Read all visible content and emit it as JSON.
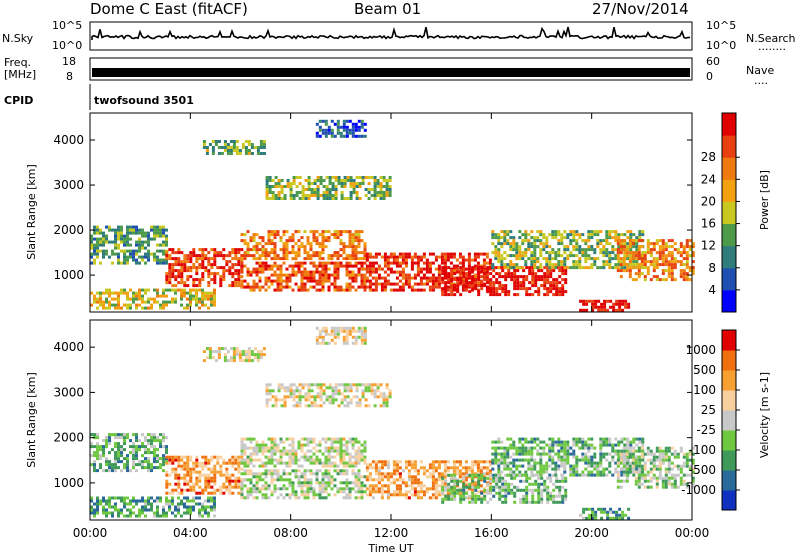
{
  "header": {
    "station": "Dome C East (fitACF)",
    "beam": "Beam 01",
    "date": "27/Nov/2014"
  },
  "noise_panel": {
    "left_label": "N.Sky",
    "right_label": "N.Search",
    "top_tick": "10^5",
    "bottom_tick": "10^0",
    "right_dots": "........"
  },
  "freq_panel": {
    "left_label_1": "Freq.",
    "left_label_2": "[MHz]",
    "left_top_tick": "18",
    "left_bottom_tick": "8",
    "right_label": "Nave",
    "right_top_tick": "60",
    "right_bottom_tick": "0",
    "right_dots": "...."
  },
  "cpid": {
    "label": "CPID",
    "value": "twofsound 3501"
  },
  "x_axis": {
    "title": "Time UT",
    "ticks": [
      "00:00",
      "04:00",
      "08:00",
      "12:00",
      "16:00",
      "20:00",
      "00:00"
    ]
  },
  "colors": {
    "axes": "#000000",
    "background": "#ffffff"
  },
  "chart_data": [
    {
      "type": "heatmap",
      "panel": "power",
      "ylabel": "Slant Range [km]",
      "yticks": [
        "1000",
        "2000",
        "3000",
        "4000"
      ],
      "ylim_km": [
        180,
        4600
      ],
      "xlim_hours": [
        0,
        24
      ],
      "colorbar": {
        "label": "Power [dB]",
        "ticks": [
          "4",
          "8",
          "12",
          "16",
          "20",
          "24",
          "28"
        ],
        "colors": [
          "#0000ff",
          "#1f4fb0",
          "#2e7d7a",
          "#4c9a4a",
          "#c9c820",
          "#f2a010",
          "#ef7a10",
          "#e84010",
          "#e00000"
        ]
      },
      "regions": [
        {
          "t0": 0,
          "t1": 5,
          "r0": 280,
          "r1": 700,
          "level": 0.55
        },
        {
          "t0": 0,
          "t1": 3,
          "r0": 1300,
          "r1": 2100,
          "level": 0.35
        },
        {
          "t0": 3,
          "t1": 6,
          "r0": 800,
          "r1": 1600,
          "level": 0.85
        },
        {
          "t0": 6,
          "t1": 11,
          "r0": 700,
          "r1": 1300,
          "level": 0.8
        },
        {
          "t0": 6,
          "t1": 11,
          "r0": 1400,
          "r1": 2000,
          "level": 0.7
        },
        {
          "t0": 11,
          "t1": 16,
          "r0": 700,
          "r1": 1500,
          "level": 0.9
        },
        {
          "t0": 14,
          "t1": 19,
          "r0": 600,
          "r1": 1200,
          "level": 0.95
        },
        {
          "t0": 16,
          "t1": 22,
          "r0": 1200,
          "r1": 2000,
          "level": 0.45
        },
        {
          "t0": 19.5,
          "t1": 21.5,
          "r0": 200,
          "r1": 450,
          "level": 0.95
        },
        {
          "t0": 21,
          "t1": 24,
          "r0": 900,
          "r1": 1800,
          "level": 0.7
        },
        {
          "t0": 7,
          "t1": 12,
          "r0": 2700,
          "r1": 3200,
          "level": 0.45
        },
        {
          "t0": 4.5,
          "t1": 7,
          "r0": 3700,
          "r1": 4000,
          "level": 0.4
        },
        {
          "t0": 9,
          "t1": 11,
          "r0": 4100,
          "r1": 4450,
          "level": 0.2
        }
      ]
    },
    {
      "type": "heatmap",
      "panel": "velocity",
      "ylabel": "Slant Range [km]",
      "yticks": [
        "1000",
        "2000",
        "3000",
        "4000"
      ],
      "ylim_km": [
        180,
        4600
      ],
      "xlim_hours": [
        0,
        24
      ],
      "colorbar": {
        "label": "Velocity [m s-1]",
        "ticks": [
          "1000",
          "500",
          "100",
          "25",
          "-25",
          "-100",
          "-500",
          "-1000"
        ],
        "colors": [
          "#1030c0",
          "#2a6a9a",
          "#3f9a5a",
          "#6fc840",
          "#c8c8c8",
          "#f8d0a0",
          "#f5a030",
          "#f07010",
          "#e00000"
        ]
      },
      "regions": [
        {
          "t0": 0,
          "t1": 5,
          "r0": 280,
          "r1": 700,
          "level": 0.3
        },
        {
          "t0": 0,
          "t1": 3,
          "r0": 1300,
          "r1": 2100,
          "level": 0.35
        },
        {
          "t0": 3,
          "t1": 6,
          "r0": 800,
          "r1": 1600,
          "level": 0.75
        },
        {
          "t0": 6,
          "t1": 11,
          "r0": 700,
          "r1": 1300,
          "level": 0.45
        },
        {
          "t0": 6,
          "t1": 11,
          "r0": 1400,
          "r1": 2000,
          "level": 0.5
        },
        {
          "t0": 11,
          "t1": 16,
          "r0": 700,
          "r1": 1500,
          "level": 0.72
        },
        {
          "t0": 14,
          "t1": 19,
          "r0": 600,
          "r1": 1200,
          "level": 0.38
        },
        {
          "t0": 16,
          "t1": 22,
          "r0": 1200,
          "r1": 2000,
          "level": 0.35
        },
        {
          "t0": 19.5,
          "t1": 21.5,
          "r0": 200,
          "r1": 450,
          "level": 0.3
        },
        {
          "t0": 21,
          "t1": 24,
          "r0": 900,
          "r1": 1800,
          "level": 0.42
        },
        {
          "t0": 7,
          "t1": 12,
          "r0": 2700,
          "r1": 3200,
          "level": 0.55
        },
        {
          "t0": 4.5,
          "t1": 7,
          "r0": 3700,
          "r1": 4000,
          "level": 0.55
        },
        {
          "t0": 9,
          "t1": 11,
          "r0": 4100,
          "r1": 4450,
          "level": 0.6
        }
      ]
    }
  ]
}
